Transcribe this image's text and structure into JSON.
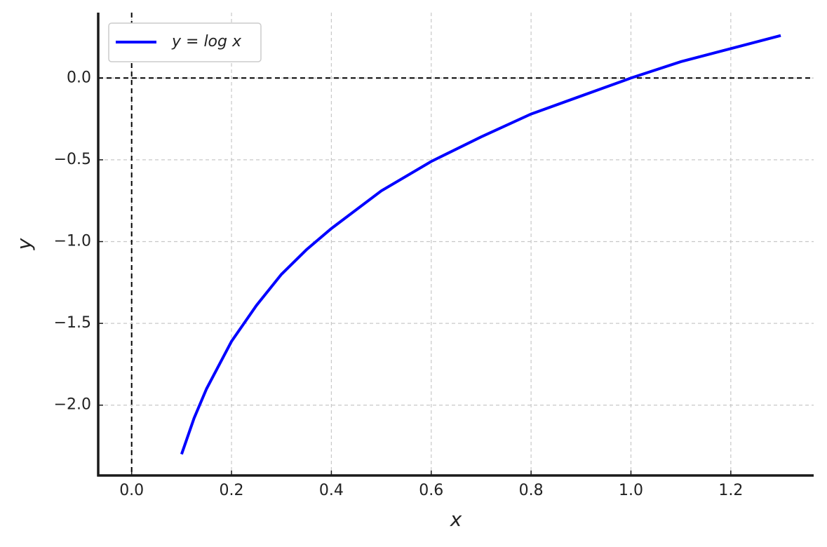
{
  "chart_data": {
    "type": "line",
    "xlabel": "x",
    "ylabel": "y",
    "x": [
      0.1,
      0.125,
      0.15,
      0.2,
      0.25,
      0.3,
      0.35,
      0.4,
      0.5,
      0.6,
      0.7,
      0.8,
      0.9,
      1.0,
      1.1,
      1.2,
      1.3
    ],
    "series": [
      {
        "name": "y = log x",
        "color": "#0000ff",
        "values": [
          -2.3,
          -2.08,
          -1.9,
          -1.61,
          -1.39,
          -1.2,
          -1.05,
          -0.92,
          -0.69,
          -0.51,
          -0.36,
          -0.22,
          -0.11,
          0.0,
          0.1,
          0.18,
          0.26
        ]
      }
    ],
    "xlim": [
      -0.067,
      1.366
    ],
    "ylim": [
      -2.43,
      0.4
    ],
    "xticks": [
      {
        "value": 0,
        "label": "0.0"
      },
      {
        "value": 0.2,
        "label": "0.2"
      },
      {
        "value": 0.4,
        "label": "0.4"
      },
      {
        "value": 0.6,
        "label": "0.6"
      },
      {
        "value": 0.8,
        "label": "0.8"
      },
      {
        "value": 1.0,
        "label": "1.0"
      },
      {
        "value": 1.2,
        "label": "1.2"
      }
    ],
    "yticks": [
      {
        "value": 0,
        "label": "0.0"
      },
      {
        "value": -0.5,
        "label": "−0.5"
      },
      {
        "value": -1.0,
        "label": "−1.0"
      },
      {
        "value": -1.5,
        "label": "−1.5"
      },
      {
        "value": -2.0,
        "label": "−2.0"
      }
    ],
    "reference_lines": {
      "x": 0,
      "y": 0
    },
    "grid": true,
    "legend": "upper left"
  }
}
